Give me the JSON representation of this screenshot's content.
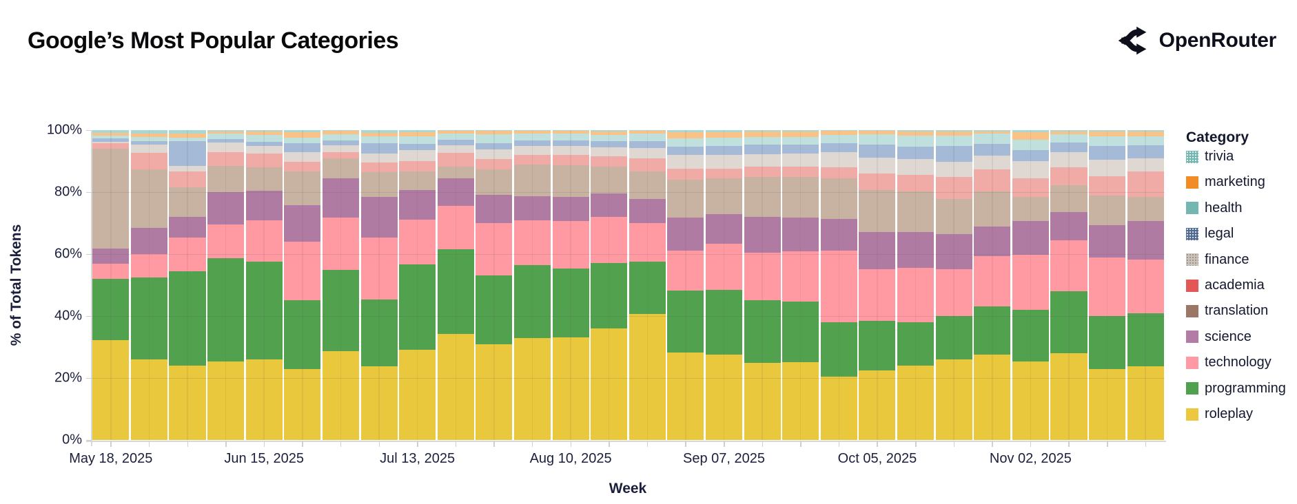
{
  "header": {
    "title": "Google’s Most Popular Categories",
    "brand_name": "OpenRouter",
    "brand_icon": "openrouter-logo-icon"
  },
  "chart_data": {
    "type": "bar",
    "variant": "stacked-100-percent-weekly",
    "title": "Google’s Most Popular Categories",
    "xlabel": "Week",
    "ylabel": "% of Total Tokens",
    "ylim": [
      0,
      100
    ],
    "grid": "faint horizontal at 20/40/60/80 and vertical at each week, seen through translucent bars",
    "legend_position": "right",
    "legend_title": "Category",
    "y_tick_labels": [
      "0%",
      "20%",
      "40%",
      "60%",
      "80%",
      "100%"
    ],
    "y_tick_values": [
      0,
      20,
      40,
      60,
      80,
      100
    ],
    "x_labeled_tick_indices": [
      0,
      4,
      8,
      12,
      16,
      20,
      24
    ],
    "x_labeled_tick_labels": [
      "May 18, 2025",
      "Jun 15, 2025",
      "Jul 13, 2025",
      "Aug 10, 2025",
      "Sep 07, 2025",
      "Oct 05, 2025",
      "Nov 02, 2025"
    ],
    "weeks": [
      "May 18, 2025",
      "May 25, 2025",
      "Jun 01, 2025",
      "Jun 08, 2025",
      "Jun 15, 2025",
      "Jun 22, 2025",
      "Jun 29, 2025",
      "Jul 06, 2025",
      "Jul 13, 2025",
      "Jul 20, 2025",
      "Jul 27, 2025",
      "Aug 03, 2025",
      "Aug 10, 2025",
      "Aug 17, 2025",
      "Aug 24, 2025",
      "Aug 31, 2025",
      "Sep 07, 2025",
      "Sep 14, 2025",
      "Sep 21, 2025",
      "Sep 28, 2025",
      "Oct 05, 2025",
      "Oct 12, 2025",
      "Oct 19, 2025",
      "Oct 26, 2025",
      "Nov 02, 2025",
      "Nov 09, 2025",
      "Nov 16, 2025",
      "Nov 23, 2025"
    ],
    "series_note": "values are % of total tokens per week; listed in legend order (top of stack first)",
    "series": [
      {
        "name": "trivia",
        "legend_color": "#74b6b1",
        "bar_color": "#a9d7d3",
        "pattern": "white-dots",
        "values": [
          0.8,
          1,
          1,
          0.4,
          0.5,
          0.7,
          0.3,
          0.8,
          0.6,
          0.3,
          0.3,
          0.2,
          0.2,
          0.4,
          0.3,
          0.6,
          0.6,
          0.5,
          0.5,
          0.3,
          0.3,
          0.5,
          0.5,
          0.4,
          0.7,
          0.4,
          0.5,
          0.4
        ]
      },
      {
        "name": "marketing",
        "legend_color": "#f28c26",
        "bar_color": "#f9c286",
        "pattern": null,
        "values": [
          0.9,
          1.2,
          1.4,
          0.6,
          1,
          1.8,
          1,
          1.2,
          1.4,
          0.9,
          1,
          0.9,
          1,
          1.1,
          0.7,
          2,
          1.9,
          1.7,
          1.8,
          1.2,
          1,
          1.2,
          1.2,
          0.8,
          2.3,
          1,
          1.6,
          1.6
        ]
      },
      {
        "name": "health",
        "legend_color": "#74b6b1",
        "bar_color": "#bfe0dd",
        "pattern": null,
        "values": [
          1,
          1.3,
          1.1,
          1.8,
          2.2,
          1.8,
          2,
          2.3,
          2.5,
          2,
          3,
          2.3,
          2.2,
          2,
          2.6,
          2.8,
          2.5,
          2.5,
          2.4,
          2.8,
          3.4,
          3.7,
          3.3,
          3.3,
          3.5,
          2.7,
          3,
          2.9
        ]
      },
      {
        "name": "legal",
        "legend_color": "#4f6a8f",
        "bar_color": "#a4bad6",
        "pattern": "white-dots",
        "values": [
          1,
          1.2,
          8,
          1.1,
          1.3,
          2.7,
          1.5,
          3.3,
          2,
          1.6,
          1.9,
          1.6,
          1.6,
          2,
          2.2,
          2.6,
          3,
          3,
          2.8,
          2.9,
          4.1,
          4,
          5.3,
          3.6,
          3.5,
          2.9,
          4.5,
          4.3
        ]
      },
      {
        "name": "finance",
        "legend_color": "#cfc3b6",
        "bar_color": "#ded7d2",
        "pattern": "dark-dots",
        "values": [
          0.5,
          2.7,
          1.9,
          3.1,
          2.5,
          3.3,
          2.2,
          2.9,
          3.5,
          2.6,
          3.2,
          3,
          3,
          3,
          3.4,
          4.5,
          4.5,
          4.1,
          4.2,
          4.7,
          5.3,
          5.1,
          4.9,
          4.5,
          5.6,
          4.9,
          5.2,
          4.1
        ]
      },
      {
        "name": "academia",
        "legend_color": "#e15857",
        "bar_color": "#f1aba6",
        "pattern": null,
        "values": [
          1.8,
          5.3,
          5.1,
          4.6,
          4.5,
          3,
          2.2,
          3,
          3.3,
          4.4,
          3.2,
          3,
          3.3,
          3.2,
          4.2,
          3.5,
          3.1,
          3.2,
          3.3,
          3.7,
          5.2,
          5.2,
          7.1,
          7.1,
          6,
          5.9,
          6.4,
          8.3
        ]
      },
      {
        "name": "translation",
        "legend_color": "#9b7766",
        "bar_color": "#c8b2a1",
        "pattern": null,
        "values": [
          32.2,
          18.8,
          9.5,
          8.4,
          7.6,
          10.9,
          6.4,
          8.1,
          6,
          3.8,
          8.2,
          10.4,
          10.3,
          8.7,
          8.9,
          12.3,
          11.6,
          13,
          13.2,
          13.1,
          13.5,
          13.1,
          11.3,
          11.3,
          7.8,
          8.7,
          9.4,
          7.8
        ]
      },
      {
        "name": "science",
        "legend_color": "#b27ca4",
        "bar_color": "#b07ba3",
        "pattern": null,
        "values": [
          4.8,
          8.5,
          6.7,
          10.4,
          9.6,
          11.8,
          12.7,
          13.1,
          9.5,
          8.9,
          9.3,
          7.6,
          7.8,
          7.7,
          7.7,
          10.5,
          9.4,
          11.5,
          11,
          10.1,
          12,
          11.7,
          11.2,
          9.7,
          10.9,
          9,
          10.4,
          12.4
        ]
      },
      {
        "name": "technology",
        "legend_color": "#ff9aa4",
        "bar_color": "#ff99a2",
        "pattern": null,
        "values": [
          5,
          7.5,
          10.8,
          11,
          13.3,
          18.9,
          16.9,
          19.9,
          14.6,
          13.9,
          16.7,
          14.6,
          15.2,
          14.8,
          12.5,
          13,
          14.9,
          15.3,
          16.1,
          23.2,
          16.8,
          17.5,
          15.3,
          16.1,
          17.7,
          16.4,
          19.1,
          17.2
        ]
      },
      {
        "name": "programming",
        "legend_color": "#4fa04f",
        "bar_color": "#52a14e",
        "pattern": null,
        "values": [
          19.7,
          26.5,
          30.5,
          33.3,
          31.4,
          22.3,
          26.2,
          21.6,
          27.4,
          27.4,
          22.2,
          23.4,
          22.2,
          21,
          16.8,
          19.9,
          21,
          20.2,
          19.5,
          17.6,
          16,
          14.1,
          13.9,
          15.7,
          16.6,
          20.2,
          16.9,
          17.2
        ]
      },
      {
        "name": "roleplay",
        "legend_color": "#ecc83f",
        "bar_color": "#e9c83d",
        "pattern": null,
        "values": [
          32.3,
          26,
          24,
          25.3,
          26.1,
          22.8,
          28.6,
          23.8,
          29.2,
          34.2,
          31,
          33,
          33.2,
          36.1,
          40.7,
          28.3,
          27.5,
          25,
          25.2,
          20.4,
          22.4,
          23.9,
          26,
          27.5,
          25.4,
          27.9,
          23,
          23.8
        ]
      }
    ]
  }
}
